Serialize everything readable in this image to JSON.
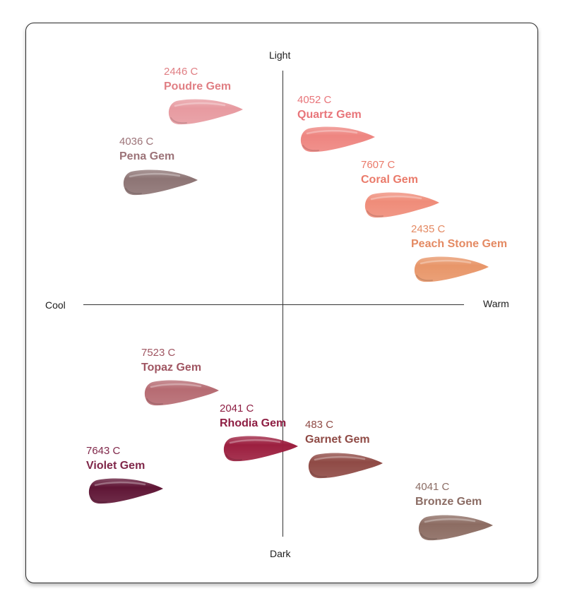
{
  "axes": {
    "top": "Light",
    "bottom": "Dark",
    "left": "Cool",
    "right": "Warm"
  },
  "shades": [
    {
      "code": "2446 C",
      "name": "Poudre Gem",
      "text_color": "#e07f84",
      "swatch_color": "#e79aa0",
      "icon": "lipstick-swatch"
    },
    {
      "code": "4036 C",
      "name": "Pena Gem",
      "text_color": "#9c7378",
      "swatch_color": "#8d7474",
      "icon": "lipstick-swatch"
    },
    {
      "code": "4052 C",
      "name": "Quartz Gem",
      "text_color": "#e8757a",
      "swatch_color": "#ee8580",
      "icon": "lipstick-swatch"
    },
    {
      "code": "7607 C",
      "name": "Coral Gem",
      "text_color": "#ea7a6a",
      "swatch_color": "#ef8c79",
      "icon": "lipstick-swatch"
    },
    {
      "code": "2435 C",
      "name": "Peach Stone Gem",
      "text_color": "#e48a63",
      "swatch_color": "#e89669",
      "icon": "lipstick-swatch"
    },
    {
      "code": "7523 C",
      "name": "Topaz Gem",
      "text_color": "#a05662",
      "swatch_color": "#b66b72",
      "icon": "lipstick-swatch"
    },
    {
      "code": "2041 C",
      "name": "Rhodia Gem",
      "text_color": "#8e1e43",
      "swatch_color": "#9c1f3f",
      "icon": "lipstick-swatch"
    },
    {
      "code": "483 C",
      "name": "Garnet Gem",
      "text_color": "#8f4a45",
      "swatch_color": "#8f4a45",
      "icon": "lipstick-swatch"
    },
    {
      "code": "7643 C",
      "name": "Violet Gem",
      "text_color": "#80284a",
      "swatch_color": "#5f1535",
      "icon": "lipstick-swatch"
    },
    {
      "code": "4041 C",
      "name": "Bronze Gem",
      "text_color": "#8b6c64",
      "swatch_color": "#8c6c62",
      "icon": "lipstick-swatch"
    }
  ]
}
